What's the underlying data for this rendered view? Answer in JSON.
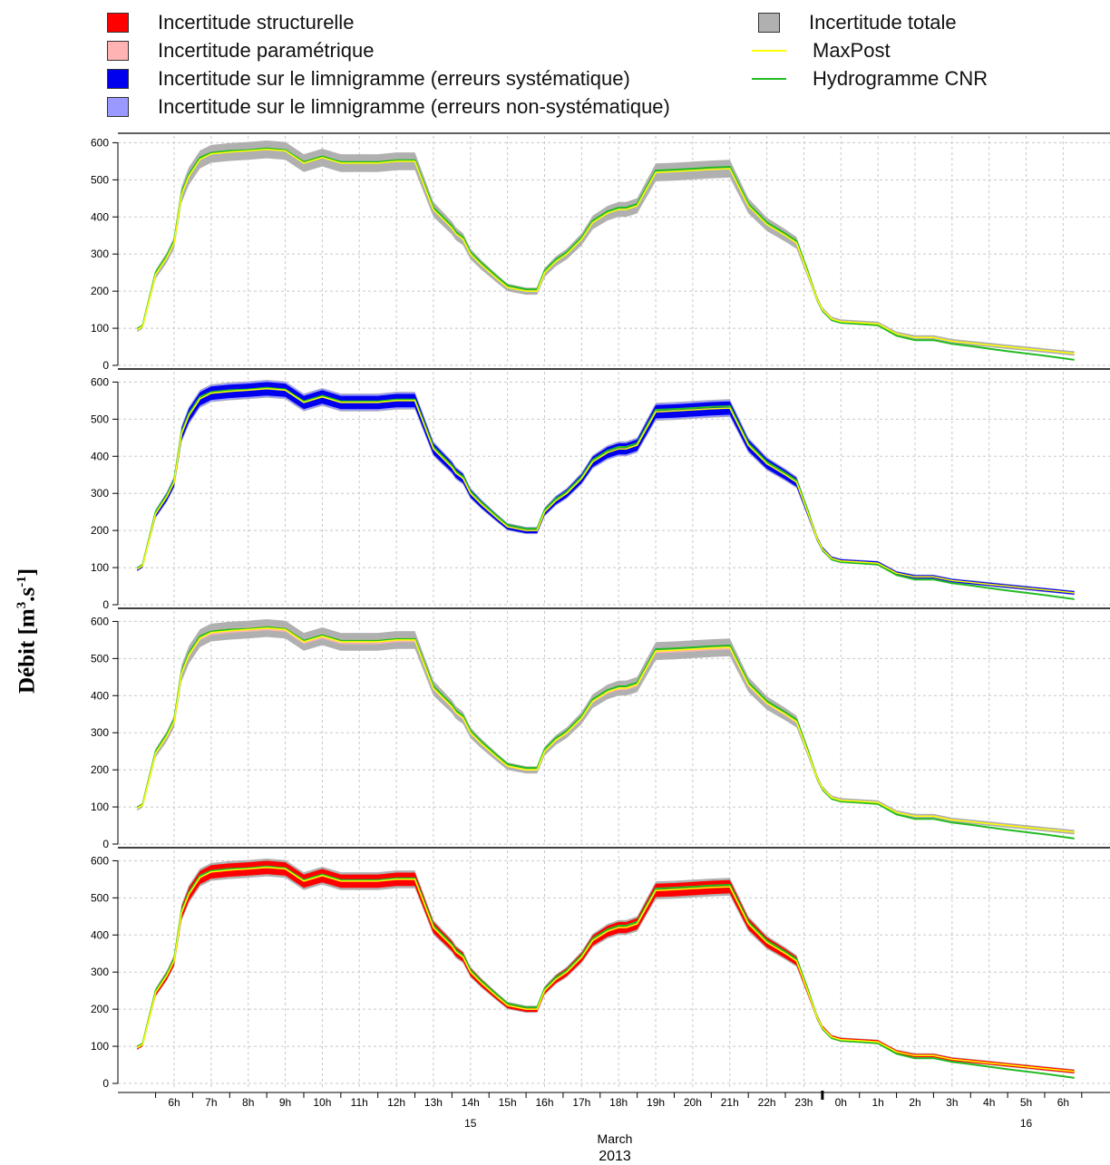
{
  "legend": {
    "left": [
      {
        "label": "Incertitude structurelle",
        "color": "#ff0000",
        "kind": "box"
      },
      {
        "label": "Incertitude paramétrique",
        "color": "#ffb3b3",
        "kind": "box"
      },
      {
        "label": "Incertitude sur le limnigramme (erreurs systématique)",
        "color": "#0000ee",
        "kind": "box"
      },
      {
        "label": "Incertitude sur le limnigramme (erreurs non-systématique)",
        "color": "#9999ff",
        "kind": "box"
      }
    ],
    "right": [
      {
        "label": "Incertitude totale",
        "color": "#b0b0b0",
        "kind": "box"
      },
      {
        "label": "MaxPost",
        "color": "#ffff00",
        "kind": "line"
      },
      {
        "label": "Hydrogramme CNR",
        "color": "#22bb22",
        "kind": "line"
      }
    ]
  },
  "ylabel": {
    "text": "Débit",
    "unit_open": " [m",
    "sup1": "3",
    "unit_mid": ".s",
    "sup2": "-1",
    "unit_close": "]"
  },
  "xaxis": {
    "hour_labels": [
      "6h",
      "7h",
      "8h",
      "9h",
      "10h",
      "11h",
      "12h",
      "13h",
      "14h",
      "15h",
      "16h",
      "17h",
      "18h",
      "19h",
      "20h",
      "21h",
      "22h",
      "23h",
      "0h",
      "1h",
      "2h",
      "3h",
      "4h",
      "5h",
      "6h"
    ],
    "day_labels": [
      "15",
      "16"
    ],
    "month_label": "March",
    "year_label": "2013"
  },
  "colors": {
    "total": "#b0b0b0",
    "maxpost": "#ffff00",
    "cnr": "#22bb22",
    "structural": "#ff0000",
    "parametric": "#ffb3b3",
    "systematic": "#0000ee",
    "nonsystematic": "#9999ff",
    "grid": "#c8c8c8"
  },
  "chart_data": {
    "type": "area",
    "panels": 4,
    "shared_x_axis": true,
    "x_unit": "time (hours, 15-16 March 2013)",
    "x_start": "2013-03-15 05:30",
    "x_end": "2013-03-16 06:30",
    "yticks": [
      0,
      100,
      200,
      300,
      400,
      500,
      600
    ],
    "ylim": [
      0,
      615
    ],
    "grid": true,
    "series": [
      {
        "name": "MaxPost",
        "x_hours_since_5h": [
          0.0,
          0.15,
          0.5,
          0.8,
          1.0,
          1.2,
          1.4,
          1.7,
          2.0,
          2.5,
          3.0,
          3.5,
          4.0,
          4.5,
          5.0,
          5.5,
          6.0,
          6.5,
          7.0,
          7.5,
          8.0,
          8.5,
          8.6,
          8.8,
          9.0,
          9.3,
          9.7,
          10.0,
          10.5,
          10.8,
          11.0,
          11.3,
          11.6,
          12.0,
          12.3,
          12.7,
          13.0,
          13.2,
          13.5,
          14.0,
          14.5,
          15.0,
          15.5,
          16.0,
          16.5,
          17.0,
          17.5,
          17.8,
          18.1,
          18.35,
          18.5,
          18.75,
          19.0,
          19.5,
          20.0,
          20.5,
          21.0,
          21.5,
          22.0,
          22.5,
          23.0,
          23.5,
          24.0,
          24.5,
          25.3
        ],
        "values": [
          96,
          105,
          245,
          290,
          330,
          460,
          510,
          555,
          570,
          575,
          578,
          582,
          578,
          545,
          560,
          545,
          545,
          545,
          550,
          550,
          420,
          370,
          355,
          340,
          300,
          270,
          235,
          210,
          200,
          200,
          250,
          280,
          300,
          340,
          385,
          410,
          420,
          420,
          430,
          520,
          522,
          525,
          528,
          530,
          430,
          380,
          350,
          330,
          250,
          180,
          150,
          125,
          118,
          115,
          112,
          85,
          75,
          75,
          65,
          60,
          55,
          50,
          45,
          40,
          32
        ]
      },
      {
        "name": "Hydrogramme CNR",
        "x_hours_since_5h": [
          0.0,
          0.15,
          0.5,
          0.8,
          1.0,
          1.2,
          1.4,
          1.7,
          2.0,
          2.5,
          3.0,
          3.5,
          4.0,
          4.5,
          5.0,
          5.5,
          6.0,
          6.5,
          7.0,
          7.5,
          8.0,
          8.5,
          8.6,
          8.8,
          9.0,
          9.3,
          9.7,
          10.0,
          10.5,
          10.8,
          11.0,
          11.3,
          11.6,
          12.0,
          12.3,
          12.7,
          13.0,
          13.2,
          13.5,
          14.0,
          14.5,
          15.0,
          15.5,
          16.0,
          16.5,
          17.0,
          17.5,
          17.8,
          18.1,
          18.35,
          18.5,
          18.75,
          19.0,
          19.5,
          20.0,
          20.5,
          21.0,
          21.5,
          22.0,
          22.5,
          23.0,
          23.5,
          24.0,
          24.5,
          25.3
        ],
        "values": [
          98,
          107,
          250,
          295,
          335,
          465,
          515,
          560,
          573,
          578,
          580,
          585,
          580,
          548,
          563,
          548,
          548,
          548,
          553,
          553,
          425,
          375,
          360,
          345,
          305,
          275,
          240,
          215,
          205,
          205,
          255,
          285,
          305,
          345,
          390,
          415,
          425,
          425,
          435,
          525,
          527,
          530,
          533,
          535,
          435,
          385,
          355,
          335,
          255,
          180,
          148,
          122,
          115,
          112,
          108,
          80,
          68,
          68,
          58,
          52,
          45,
          38,
          32,
          26,
          15
        ]
      }
    ],
    "band_half_widths": {
      "total": 24,
      "panel_1_inner": "Incertitude totale only",
      "panel_2_systematic": 18,
      "panel_2_nonsystematic": 22,
      "panel_3_parametric": 6,
      "panel_4_structural": 18
    }
  }
}
